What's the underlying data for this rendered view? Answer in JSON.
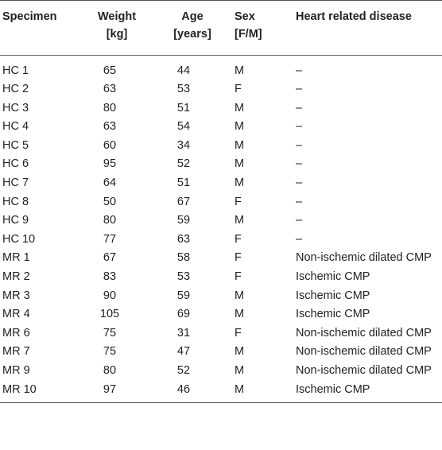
{
  "table": {
    "headers": {
      "specimen": "Specimen",
      "weight_line1": "Weight",
      "weight_line2": "[kg]",
      "age_line1": "Age",
      "age_line2": "[years]",
      "sex_line1": "Sex",
      "sex_line2": "[F/M]",
      "disease": "Heart related disease"
    },
    "rows": [
      {
        "specimen": "HC 1",
        "weight": "65",
        "age": "44",
        "sex": "M",
        "disease": "–"
      },
      {
        "specimen": "HC 2",
        "weight": "63",
        "age": "53",
        "sex": "F",
        "disease": "–"
      },
      {
        "specimen": "HC 3",
        "weight": "80",
        "age": "51",
        "sex": "M",
        "disease": "–"
      },
      {
        "specimen": "HC 4",
        "weight": "63",
        "age": "54",
        "sex": "M",
        "disease": "–"
      },
      {
        "specimen": "HC 5",
        "weight": "60",
        "age": "34",
        "sex": "M",
        "disease": "–"
      },
      {
        "specimen": "HC 6",
        "weight": "95",
        "age": "52",
        "sex": "M",
        "disease": "–"
      },
      {
        "specimen": "HC 7",
        "weight": "64",
        "age": "51",
        "sex": "M",
        "disease": "–"
      },
      {
        "specimen": "HC 8",
        "weight": "50",
        "age": "67",
        "sex": "F",
        "disease": "–"
      },
      {
        "specimen": "HC 9",
        "weight": "80",
        "age": "59",
        "sex": "M",
        "disease": "–"
      },
      {
        "specimen": "HC 10",
        "weight": "77",
        "age": "63",
        "sex": "F",
        "disease": "–"
      },
      {
        "specimen": "MR 1",
        "weight": "67",
        "age": "58",
        "sex": "F",
        "disease": "Non-ischemic dilated CMP"
      },
      {
        "specimen": "MR 2",
        "weight": "83",
        "age": "53",
        "sex": "F",
        "disease": "Ischemic CMP"
      },
      {
        "specimen": "MR 3",
        "weight": "90",
        "age": "59",
        "sex": "M",
        "disease": "Ischemic CMP"
      },
      {
        "specimen": "MR 4",
        "weight": "105",
        "age": "69",
        "sex": "M",
        "disease": "Ischemic CMP"
      },
      {
        "specimen": "MR 6",
        "weight": "75",
        "age": "31",
        "sex": "F",
        "disease": "Non-ischemic dilated CMP"
      },
      {
        "specimen": "MR 7",
        "weight": "75",
        "age": "47",
        "sex": "M",
        "disease": "Non-ischemic dilated CMP"
      },
      {
        "specimen": "MR 9",
        "weight": "80",
        "age": "52",
        "sex": "M",
        "disease": "Non-ischemic dilated CMP"
      },
      {
        "specimen": "MR 10",
        "weight": "97",
        "age": "46",
        "sex": "M",
        "disease": "Ischemic CMP"
      }
    ]
  }
}
